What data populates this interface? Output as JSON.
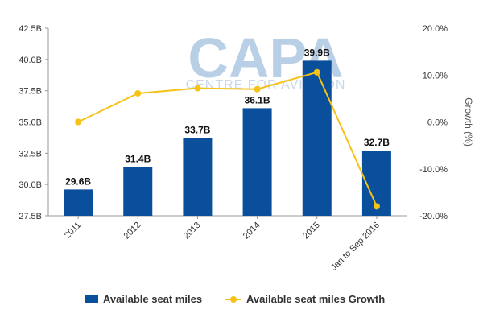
{
  "watermark": {
    "brand": "CAPA",
    "tagline": "CENTRE FOR AVIATION"
  },
  "chart_data": {
    "type": "bar",
    "categories": [
      "2011",
      "2012",
      "2013",
      "2014",
      "2015",
      "Jan to Sep 2016"
    ],
    "series": [
      {
        "name": "Available seat miles",
        "type": "bar",
        "axis": "left",
        "color": "#0a4f9c",
        "values": [
          29.6,
          31.4,
          33.7,
          36.1,
          39.9,
          32.7
        ],
        "labels": [
          "29.6B",
          "31.4B",
          "33.7B",
          "36.1B",
          "39.9B",
          "32.7B"
        ]
      },
      {
        "name": "Available seat miles Growth",
        "type": "line",
        "axis": "right",
        "color": "#f5c218",
        "values": [
          0.0,
          6.1,
          7.2,
          7.0,
          10.6,
          -18.0
        ]
      }
    ],
    "y_left": {
      "min": 27.5,
      "max": 42.5,
      "ticks": [
        27.5,
        30.0,
        32.5,
        35.0,
        37.5,
        40.0,
        42.5
      ],
      "tick_labels": [
        "27.5B",
        "30.0B",
        "32.5B",
        "35.0B",
        "37.5B",
        "40.0B",
        "42.5B"
      ]
    },
    "y_right": {
      "min": -20,
      "max": 20,
      "ticks": [
        -20,
        -10,
        0,
        10,
        20
      ],
      "tick_labels": [
        "-20.0%",
        "-10.0%",
        "0.0%",
        "10.0%",
        "20.0%"
      ],
      "label": "Growth (%)"
    },
    "grid": false,
    "legend": "bottom"
  }
}
